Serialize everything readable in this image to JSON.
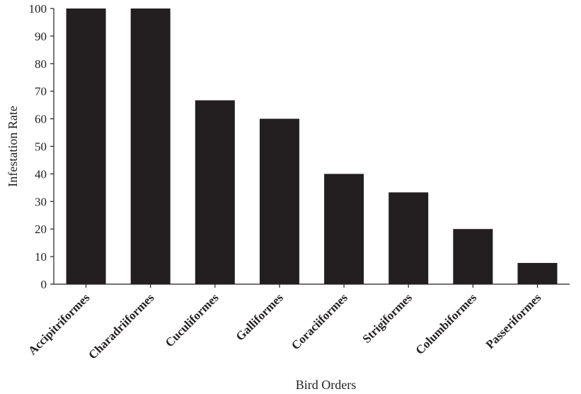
{
  "chart_data": {
    "type": "bar",
    "title": "",
    "xlabel": "Bird Orders",
    "ylabel": "Infestation Rate",
    "categories": [
      "Accipitriformes",
      "Charadriiformes",
      "Cuculiformes",
      "Galliformes",
      "Coraciiformes",
      "Strigiformes",
      "Columbiformes",
      "Passeriformes"
    ],
    "values": [
      100,
      100,
      66.7,
      60,
      40,
      33.3,
      20,
      7.7
    ],
    "ylim": [
      0,
      100
    ],
    "yticks": [
      "0",
      "10",
      "20",
      "30",
      "40",
      "50",
      "60",
      "70",
      "80",
      "90",
      "100"
    ],
    "grid": false,
    "legend": "none",
    "colors": {
      "bar": "#231f20",
      "axis": "#231f20",
      "text": "#231f20"
    }
  }
}
